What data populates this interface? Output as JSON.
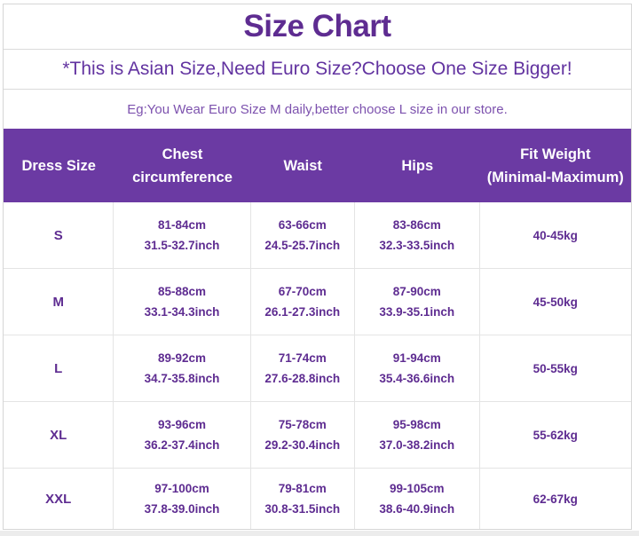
{
  "page": {
    "title": "Size Chart",
    "subtitle": "*This is Asian Size,Need Euro Size?Choose One Size Bigger!",
    "note": "Eg:You Wear Euro Size M daily,better choose L size in our store."
  },
  "colors": {
    "header_bg": "#6b3aa3",
    "title_text": "#5e2c91",
    "subtitle_text": "#6233a0",
    "note_text": "#7d52ae",
    "cell_text": "#5e2c91",
    "border": "#d6d6d6"
  },
  "table": {
    "columns": [
      {
        "id": "size",
        "line1": "Dress Size",
        "line2": ""
      },
      {
        "id": "chest",
        "line1": "Chest",
        "line2": "circumference"
      },
      {
        "id": "waist",
        "line1": "Waist",
        "line2": ""
      },
      {
        "id": "hips",
        "line1": "Hips",
        "line2": ""
      },
      {
        "id": "weight",
        "line1": "Fit Weight",
        "line2": "(Minimal-Maximum)"
      }
    ],
    "rows": [
      {
        "size": "S",
        "chest_cm": "81-84cm",
        "chest_inch": "31.5-32.7inch",
        "waist_cm": "63-66cm",
        "waist_inch": "24.5-25.7inch",
        "hips_cm": "83-86cm",
        "hips_inch": "32.3-33.5inch",
        "weight": "40-45kg"
      },
      {
        "size": "M",
        "chest_cm": "85-88cm",
        "chest_inch": "33.1-34.3inch",
        "waist_cm": "67-70cm",
        "waist_inch": "26.1-27.3inch",
        "hips_cm": "87-90cm",
        "hips_inch": "33.9-35.1inch",
        "weight": "45-50kg"
      },
      {
        "size": "L",
        "chest_cm": "89-92cm",
        "chest_inch": "34.7-35.8inch",
        "waist_cm": "71-74cm",
        "waist_inch": "27.6-28.8inch",
        "hips_cm": "91-94cm",
        "hips_inch": "35.4-36.6inch",
        "weight": "50-55kg"
      },
      {
        "size": "XL",
        "chest_cm": "93-96cm",
        "chest_inch": "36.2-37.4inch",
        "waist_cm": "75-78cm",
        "waist_inch": "29.2-30.4inch",
        "hips_cm": "95-98cm",
        "hips_inch": "37.0-38.2inch",
        "weight": "55-62kg"
      },
      {
        "size": "XXL",
        "chest_cm": "97-100cm",
        "chest_inch": "37.8-39.0inch",
        "waist_cm": "79-81cm",
        "waist_inch": "30.8-31.5inch",
        "hips_cm": "99-105cm",
        "hips_inch": "38.6-40.9inch",
        "weight": "62-67kg"
      }
    ]
  },
  "chart_data": {
    "type": "table",
    "title": "Size Chart",
    "notes": [
      "*This is Asian Size,Need Euro Size?Choose One Size Bigger!",
      "Eg:You Wear Euro Size M daily,better choose L size in our store."
    ],
    "columns": [
      "Dress Size",
      "Chest circumference",
      "Waist",
      "Hips",
      "Fit Weight (Minimal-Maximum)"
    ],
    "rows": [
      [
        "S",
        "81-84cm 31.5-32.7inch",
        "63-66cm 24.5-25.7inch",
        "83-86cm 32.3-33.5inch",
        "40-45kg"
      ],
      [
        "M",
        "85-88cm 33.1-34.3inch",
        "67-70cm 26.1-27.3inch",
        "87-90cm 33.9-35.1inch",
        "45-50kg"
      ],
      [
        "L",
        "89-92cm 34.7-35.8inch",
        "71-74cm 27.6-28.8inch",
        "91-94cm 35.4-36.6inch",
        "50-55kg"
      ],
      [
        "XL",
        "93-96cm 36.2-37.4inch",
        "75-78cm 29.2-30.4inch",
        "95-98cm 37.0-38.2inch",
        "55-62kg"
      ],
      [
        "XXL",
        "97-100cm 37.8-39.0inch",
        "79-81cm 30.8-31.5inch",
        "99-105cm 38.6-40.9inch",
        "62-67kg"
      ]
    ]
  }
}
